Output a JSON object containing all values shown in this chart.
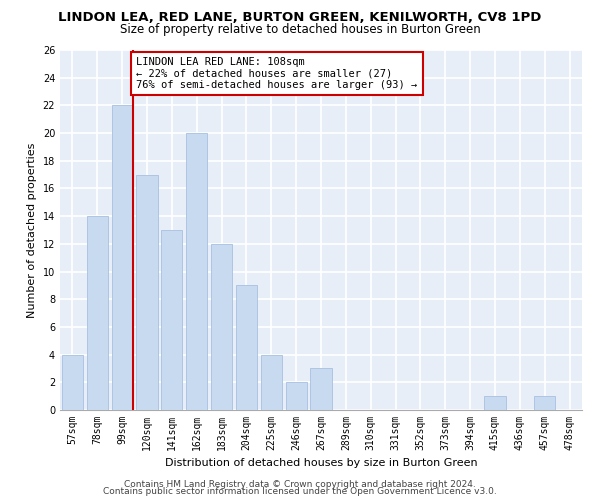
{
  "title": "LINDON LEA, RED LANE, BURTON GREEN, KENILWORTH, CV8 1PD",
  "subtitle": "Size of property relative to detached houses in Burton Green",
  "xlabel": "Distribution of detached houses by size in Burton Green",
  "ylabel": "Number of detached properties",
  "categories": [
    "57sqm",
    "78sqm",
    "99sqm",
    "120sqm",
    "141sqm",
    "162sqm",
    "183sqm",
    "204sqm",
    "225sqm",
    "246sqm",
    "267sqm",
    "289sqm",
    "310sqm",
    "331sqm",
    "352sqm",
    "373sqm",
    "394sqm",
    "415sqm",
    "436sqm",
    "457sqm",
    "478sqm"
  ],
  "values": [
    4,
    14,
    22,
    17,
    13,
    20,
    12,
    9,
    4,
    2,
    3,
    0,
    0,
    0,
    0,
    0,
    0,
    1,
    0,
    1,
    0
  ],
  "bar_color": "#c8daf0",
  "bar_edgecolor": "#a8c0e0",
  "vline_x_index": 2,
  "vline_color": "#cc0000",
  "annotation_box_text": "LINDON LEA RED LANE: 108sqm\n← 22% of detached houses are smaller (27)\n76% of semi-detached houses are larger (93) →",
  "annotation_box_color": "#cc0000",
  "annotation_box_facecolor": "white",
  "ylim": [
    0,
    26
  ],
  "yticks": [
    0,
    2,
    4,
    6,
    8,
    10,
    12,
    14,
    16,
    18,
    20,
    22,
    24,
    26
  ],
  "background_color": "#e8eef8",
  "grid_color": "white",
  "footer1": "Contains HM Land Registry data © Crown copyright and database right 2024.",
  "footer2": "Contains public sector information licensed under the Open Government Licence v3.0.",
  "title_fontsize": 9.5,
  "subtitle_fontsize": 8.5,
  "xlabel_fontsize": 8,
  "ylabel_fontsize": 8,
  "tick_fontsize": 7,
  "footer_fontsize": 6.5,
  "annotation_fontsize": 7.5
}
